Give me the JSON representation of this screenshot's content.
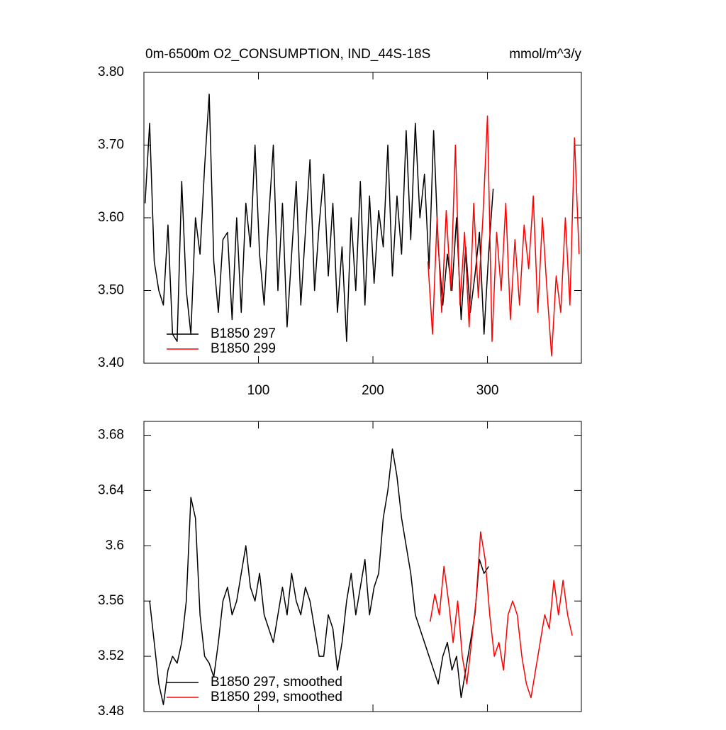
{
  "chart_data": [
    {
      "type": "line",
      "title": "0m-6500m O2_CONSUMPTION, IND_44S-18S",
      "units": "mmol/m^3/y",
      "xlim": [
        0,
        382
      ],
      "ylim": [
        3.4,
        3.8
      ],
      "xticks": [
        100,
        200,
        300
      ],
      "xticklabels": true,
      "yticks": [
        {
          "value": 3.4,
          "label": "3.40"
        },
        {
          "value": 3.5,
          "label": "3.50"
        },
        {
          "value": 3.6,
          "label": "3.60"
        },
        {
          "value": 3.7,
          "label": "3.70"
        },
        {
          "value": 3.8,
          "label": "3.80"
        }
      ],
      "series": [
        {
          "name": "B1850 297",
          "color": "#000000",
          "x": [
            1,
            5,
            9,
            13,
            17,
            21,
            25,
            29,
            33,
            37,
            41,
            45,
            49,
            53,
            57,
            61,
            65,
            69,
            73,
            77,
            81,
            85,
            89,
            93,
            97,
            101,
            105,
            109,
            113,
            117,
            121,
            125,
            129,
            133,
            137,
            141,
            145,
            149,
            153,
            157,
            161,
            165,
            169,
            173,
            177,
            181,
            185,
            189,
            193,
            197,
            201,
            205,
            209,
            213,
            217,
            221,
            225,
            229,
            233,
            237,
            241,
            245,
            249,
            253,
            257,
            261,
            265,
            269,
            273,
            277,
            281,
            285,
            289,
            293,
            297,
            301,
            305
          ],
          "values": [
            3.62,
            3.73,
            3.54,
            3.5,
            3.48,
            3.59,
            3.44,
            3.43,
            3.65,
            3.5,
            3.44,
            3.6,
            3.55,
            3.67,
            3.77,
            3.54,
            3.47,
            3.57,
            3.58,
            3.46,
            3.6,
            3.47,
            3.62,
            3.56,
            3.7,
            3.55,
            3.48,
            3.6,
            3.7,
            3.5,
            3.62,
            3.45,
            3.55,
            3.65,
            3.48,
            3.58,
            3.68,
            3.5,
            3.59,
            3.66,
            3.52,
            3.62,
            3.47,
            3.56,
            3.43,
            3.6,
            3.5,
            3.65,
            3.48,
            3.63,
            3.51,
            3.61,
            3.56,
            3.7,
            3.52,
            3.63,
            3.55,
            3.72,
            3.57,
            3.73,
            3.6,
            3.66,
            3.53,
            3.72,
            3.56,
            3.48,
            3.55,
            3.5,
            3.6,
            3.46,
            3.56,
            3.47,
            3.52,
            3.58,
            3.44,
            3.55,
            3.64
          ]
        },
        {
          "name": "B1850 299",
          "color": "#ff0000",
          "x": [
            248,
            252,
            256,
            260,
            264,
            268,
            272,
            276,
            280,
            284,
            288,
            292,
            296,
            300,
            304,
            308,
            312,
            316,
            320,
            324,
            328,
            332,
            336,
            340,
            344,
            348,
            352,
            356,
            360,
            364,
            368,
            372,
            376,
            380
          ],
          "values": [
            3.54,
            3.44,
            3.6,
            3.47,
            3.61,
            3.5,
            3.7,
            3.48,
            3.58,
            3.45,
            3.62,
            3.49,
            3.6,
            3.74,
            3.43,
            3.58,
            3.5,
            3.62,
            3.46,
            3.57,
            3.48,
            3.59,
            3.53,
            3.63,
            3.47,
            3.6,
            3.5,
            3.41,
            3.52,
            3.47,
            3.6,
            3.48,
            3.71,
            3.55
          ]
        }
      ]
    },
    {
      "type": "line",
      "xlim": [
        0,
        382
      ],
      "ylim": [
        3.48,
        3.69
      ],
      "xticks": [
        100,
        200,
        300
      ],
      "xticklabels": false,
      "yticks": [
        3.48,
        3.52,
        3.56,
        3.6,
        {
          "value": 3.64,
          "label": "3.64"
        },
        {
          "value": 3.68,
          "label": "3.68"
        }
      ],
      "series": [
        {
          "name": "B1850 297, smoothed",
          "color": "#000000",
          "x": [
            5,
            9,
            13,
            17,
            21,
            25,
            29,
            33,
            37,
            41,
            45,
            49,
            53,
            57,
            61,
            65,
            69,
            73,
            77,
            81,
            85,
            89,
            93,
            97,
            101,
            105,
            109,
            113,
            117,
            121,
            125,
            129,
            133,
            137,
            141,
            145,
            149,
            153,
            157,
            161,
            165,
            169,
            173,
            177,
            181,
            185,
            189,
            193,
            197,
            201,
            205,
            209,
            213,
            217,
            221,
            225,
            229,
            233,
            237,
            241,
            245,
            249,
            253,
            257,
            261,
            265,
            269,
            273,
            277,
            281,
            285,
            289,
            293,
            297,
            301
          ],
          "values": [
            3.56,
            3.53,
            3.5,
            3.485,
            3.51,
            3.52,
            3.515,
            3.53,
            3.56,
            3.635,
            3.62,
            3.55,
            3.52,
            3.515,
            3.505,
            3.53,
            3.56,
            3.57,
            3.55,
            3.56,
            3.58,
            3.6,
            3.57,
            3.56,
            3.58,
            3.55,
            3.54,
            3.53,
            3.55,
            3.57,
            3.55,
            3.58,
            3.56,
            3.55,
            3.57,
            3.56,
            3.54,
            3.52,
            3.52,
            3.55,
            3.54,
            3.51,
            3.53,
            3.56,
            3.58,
            3.55,
            3.57,
            3.59,
            3.55,
            3.57,
            3.58,
            3.62,
            3.64,
            3.67,
            3.65,
            3.62,
            3.6,
            3.58,
            3.55,
            3.54,
            3.53,
            3.52,
            3.51,
            3.5,
            3.52,
            3.53,
            3.51,
            3.52,
            3.49,
            3.51,
            3.53,
            3.55,
            3.59,
            3.58,
            3.585
          ]
        },
        {
          "name": "B1850 299, smoothed",
          "color": "#ff0000",
          "x": [
            250,
            254,
            258,
            262,
            266,
            270,
            274,
            278,
            282,
            286,
            290,
            294,
            298,
            302,
            306,
            310,
            314,
            318,
            322,
            326,
            330,
            334,
            338,
            342,
            346,
            350,
            354,
            358,
            362,
            366,
            370,
            374
          ],
          "values": [
            3.545,
            3.565,
            3.55,
            3.585,
            3.56,
            3.53,
            3.56,
            3.52,
            3.5,
            3.53,
            3.56,
            3.61,
            3.59,
            3.55,
            3.52,
            3.53,
            3.51,
            3.55,
            3.56,
            3.55,
            3.52,
            3.5,
            3.49,
            3.51,
            3.53,
            3.55,
            3.54,
            3.575,
            3.55,
            3.575,
            3.55,
            3.535
          ]
        }
      ]
    }
  ]
}
